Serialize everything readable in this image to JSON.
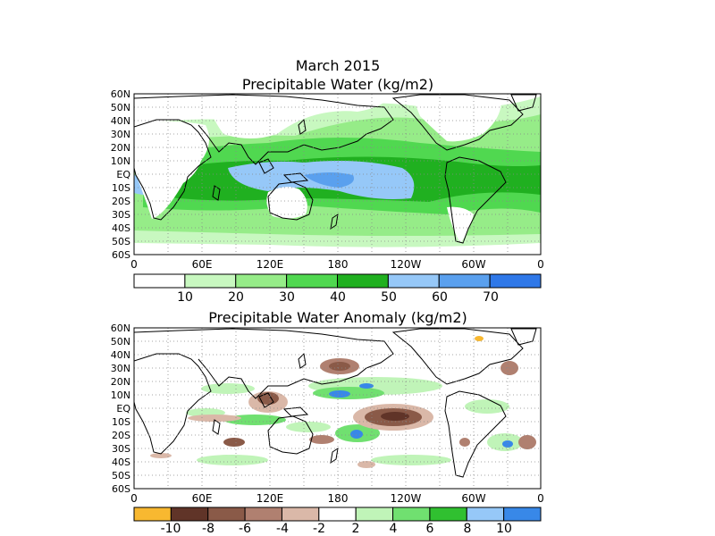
{
  "top_panel": {
    "title_line1": "March 2015",
    "title_line2": "Precipitable Water (kg/m2)",
    "lat_labels": [
      "60N",
      "50N",
      "40N",
      "30N",
      "20N",
      "10N",
      "EQ",
      "10S",
      "20S",
      "30S",
      "40S",
      "50S",
      "60S"
    ],
    "lon_labels": [
      "0",
      "60E",
      "120E",
      "180",
      "120W",
      "60W",
      "0"
    ],
    "colorbar": {
      "colors": [
        "#ffffff",
        "#c8f8c0",
        "#96ec88",
        "#50d850",
        "#20b020",
        "#96c8f8",
        "#5aa0ee",
        "#2f78e8"
      ],
      "labels": [
        "10",
        "20",
        "30",
        "40",
        "50",
        "60",
        "70"
      ]
    }
  },
  "bottom_panel": {
    "title": "Precipitable Water Anomaly (kg/m2)",
    "lat_labels": [
      "60N",
      "50N",
      "40N",
      "30N",
      "20N",
      "10N",
      "EQ",
      "10S",
      "20S",
      "30S",
      "40S",
      "50S",
      "60S"
    ],
    "lon_labels": [
      "0",
      "60E",
      "120E",
      "180",
      "120W",
      "60W",
      "0"
    ],
    "colorbar": {
      "colors": [
        "#f8b830",
        "#603428",
        "#8a5a48",
        "#b08070",
        "#dab8a8",
        "#ffffff",
        "#c0f4b8",
        "#70e070",
        "#30c030",
        "#96c8f8",
        "#3888e8"
      ],
      "labels": [
        "-10",
        "-8",
        "-6",
        "-4",
        "-2",
        "2",
        "4",
        "6",
        "8",
        "10"
      ]
    }
  },
  "colors": {
    "frame": "#000000",
    "grid": "#888888",
    "land_outline": "#000000"
  }
}
